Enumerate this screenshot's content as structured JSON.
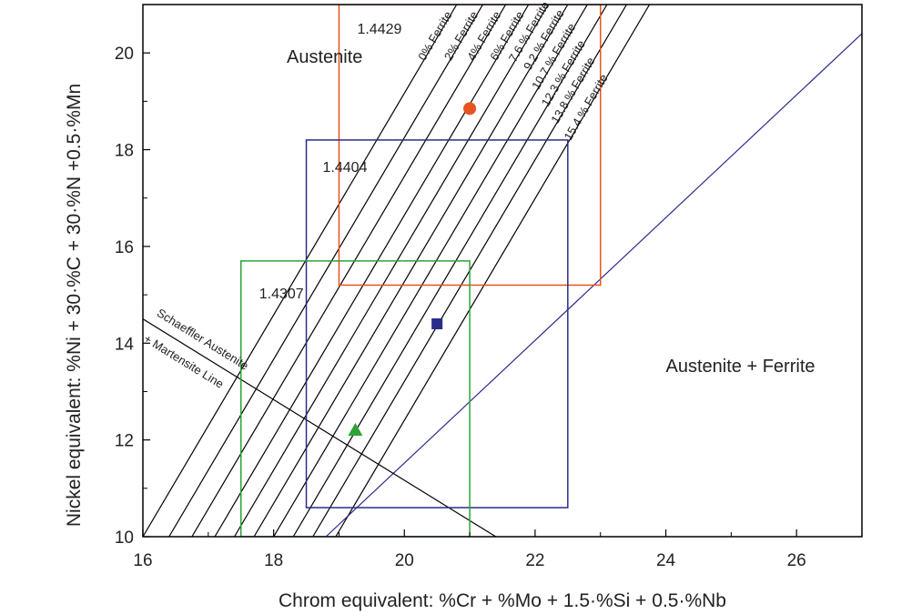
{
  "chart_data": {
    "type": "scatter",
    "xlabel": "Chrom equivalent: %Cr + %Mo + 1.5·%Si + 0.5·%Nb",
    "ylabel": "Nickel equivalent: %Ni + 30·%C + 30·%N +0.5·%Mn",
    "xlim": [
      16,
      27
    ],
    "ylim": [
      10,
      21
    ],
    "x_ticks": [
      "16",
      "18",
      "20",
      "22",
      "24",
      "26"
    ],
    "y_ticks": [
      "10",
      "12",
      "14",
      "16",
      "18",
      "20"
    ],
    "grid": false,
    "regions": [
      {
        "label": "Austenite",
        "x": 18.2,
        "y": 19.8
      },
      {
        "label": "Austenite + Ferrite",
        "x": 24.0,
        "y": 13.4
      }
    ],
    "ferrite_lines": [
      {
        "label": "0% Ferrite",
        "x0": 16.0,
        "y0": 10.0,
        "x1": 20.8,
        "y1": 21.0,
        "color": "#000000"
      },
      {
        "label": "2% Ferrite",
        "x0": 16.4,
        "y0": 10.0,
        "x1": 21.2,
        "y1": 21.0,
        "color": "#000000"
      },
      {
        "label": "4% Ferrite",
        "x0": 16.75,
        "y0": 10.0,
        "x1": 21.55,
        "y1": 21.0,
        "color": "#000000"
      },
      {
        "label": "6% Ferrite",
        "x0": 17.1,
        "y0": 10.0,
        "x1": 21.9,
        "y1": 21.0,
        "color": "#000000"
      },
      {
        "label": "7.6 % Ferrite",
        "x0": 17.4,
        "y0": 10.0,
        "x1": 22.2,
        "y1": 21.0,
        "color": "#000000"
      },
      {
        "label": "9.2 % Ferrite",
        "x0": 17.7,
        "y0": 10.0,
        "x1": 22.5,
        "y1": 21.0,
        "color": "#000000"
      },
      {
        "label": "10.7 % Ferrite",
        "x0": 18.0,
        "y0": 10.0,
        "x1": 22.8,
        "y1": 21.0,
        "color": "#000000"
      },
      {
        "label": "12.3 % Ferrite",
        "x0": 18.3,
        "y0": 10.0,
        "x1": 23.1,
        "y1": 21.0,
        "color": "#000000"
      },
      {
        "label": "13.8 % Ferrite",
        "x0": 18.6,
        "y0": 10.0,
        "x1": 23.4,
        "y1": 21.0,
        "color": "#000000"
      },
      {
        "label": "15.4 % Ferrite",
        "x0": 18.95,
        "y0": 10.0,
        "x1": 23.75,
        "y1": 21.0,
        "color": "#000000"
      }
    ],
    "extra_line": {
      "label": "",
      "x0": 18.8,
      "y0": 10.0,
      "x1": 27.0,
      "y1": 20.4,
      "color": "#2b2b8c"
    },
    "martensite_line": {
      "label_line1": "Schaeffler Austenite",
      "label_line2": "+ Martensite Line",
      "x0": 16.0,
      "y0": 14.5,
      "x1": 21.4,
      "y1": 10.0,
      "color": "#000000"
    },
    "boxes": [
      {
        "label": "1.4429",
        "x_min": 19.0,
        "x_max": 23.0,
        "y_min": 15.2,
        "y_max": 21.0,
        "color": "#e8531f"
      },
      {
        "label": "1.4404",
        "x_min": 18.5,
        "x_max": 22.5,
        "y_min": 10.6,
        "y_max": 18.2,
        "color": "#2b2b8c"
      },
      {
        "label": "1.4307",
        "x_min": 17.5,
        "x_max": 21.0,
        "y_min": 10.0,
        "y_max": 15.7,
        "color": "#2ea336"
      }
    ],
    "points": [
      {
        "grade": "1.4429",
        "x": 21.0,
        "y": 18.85,
        "marker": "circle",
        "color": "#e8531f"
      },
      {
        "grade": "1.4404",
        "x": 20.5,
        "y": 14.4,
        "marker": "square",
        "color": "#2b2b8c"
      },
      {
        "grade": "1.4307",
        "x": 19.25,
        "y": 12.2,
        "marker": "triangle",
        "color": "#2ea336"
      }
    ]
  }
}
